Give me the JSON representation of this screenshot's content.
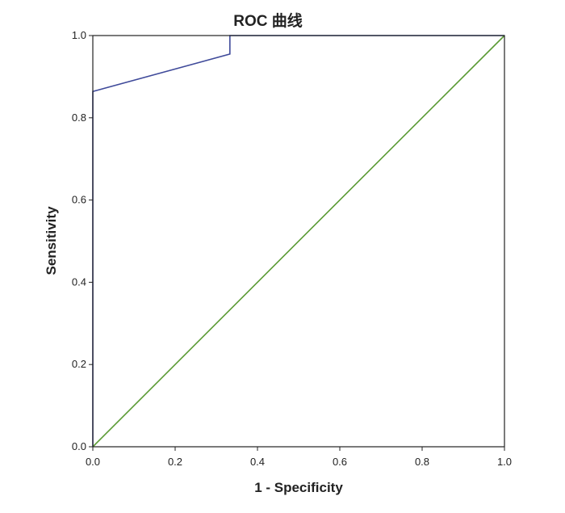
{
  "chart_data": {
    "type": "line",
    "title": "ROC 曲线",
    "xlabel": "1 - Specificity",
    "ylabel": "Sensitivity",
    "xlim": [
      0,
      1
    ],
    "ylim": [
      0,
      1
    ],
    "xticks": [
      "0.0",
      "0.2",
      "0.4",
      "0.6",
      "0.8",
      "1.0"
    ],
    "yticks": [
      "0.0",
      "0.2",
      "0.4",
      "0.6",
      "0.8",
      "1.0"
    ],
    "grid": false,
    "series": [
      {
        "color": "#3f4a9a",
        "x": [
          0.0,
          0.0,
          0.333,
          0.333,
          1.0
        ],
        "y": [
          0.0,
          0.864,
          0.955,
          1.0,
          1.0
        ]
      },
      {
        "color": "#5a9a34",
        "x": [
          0.0,
          1.0
        ],
        "y": [
          0.0,
          1.0
        ]
      }
    ]
  }
}
